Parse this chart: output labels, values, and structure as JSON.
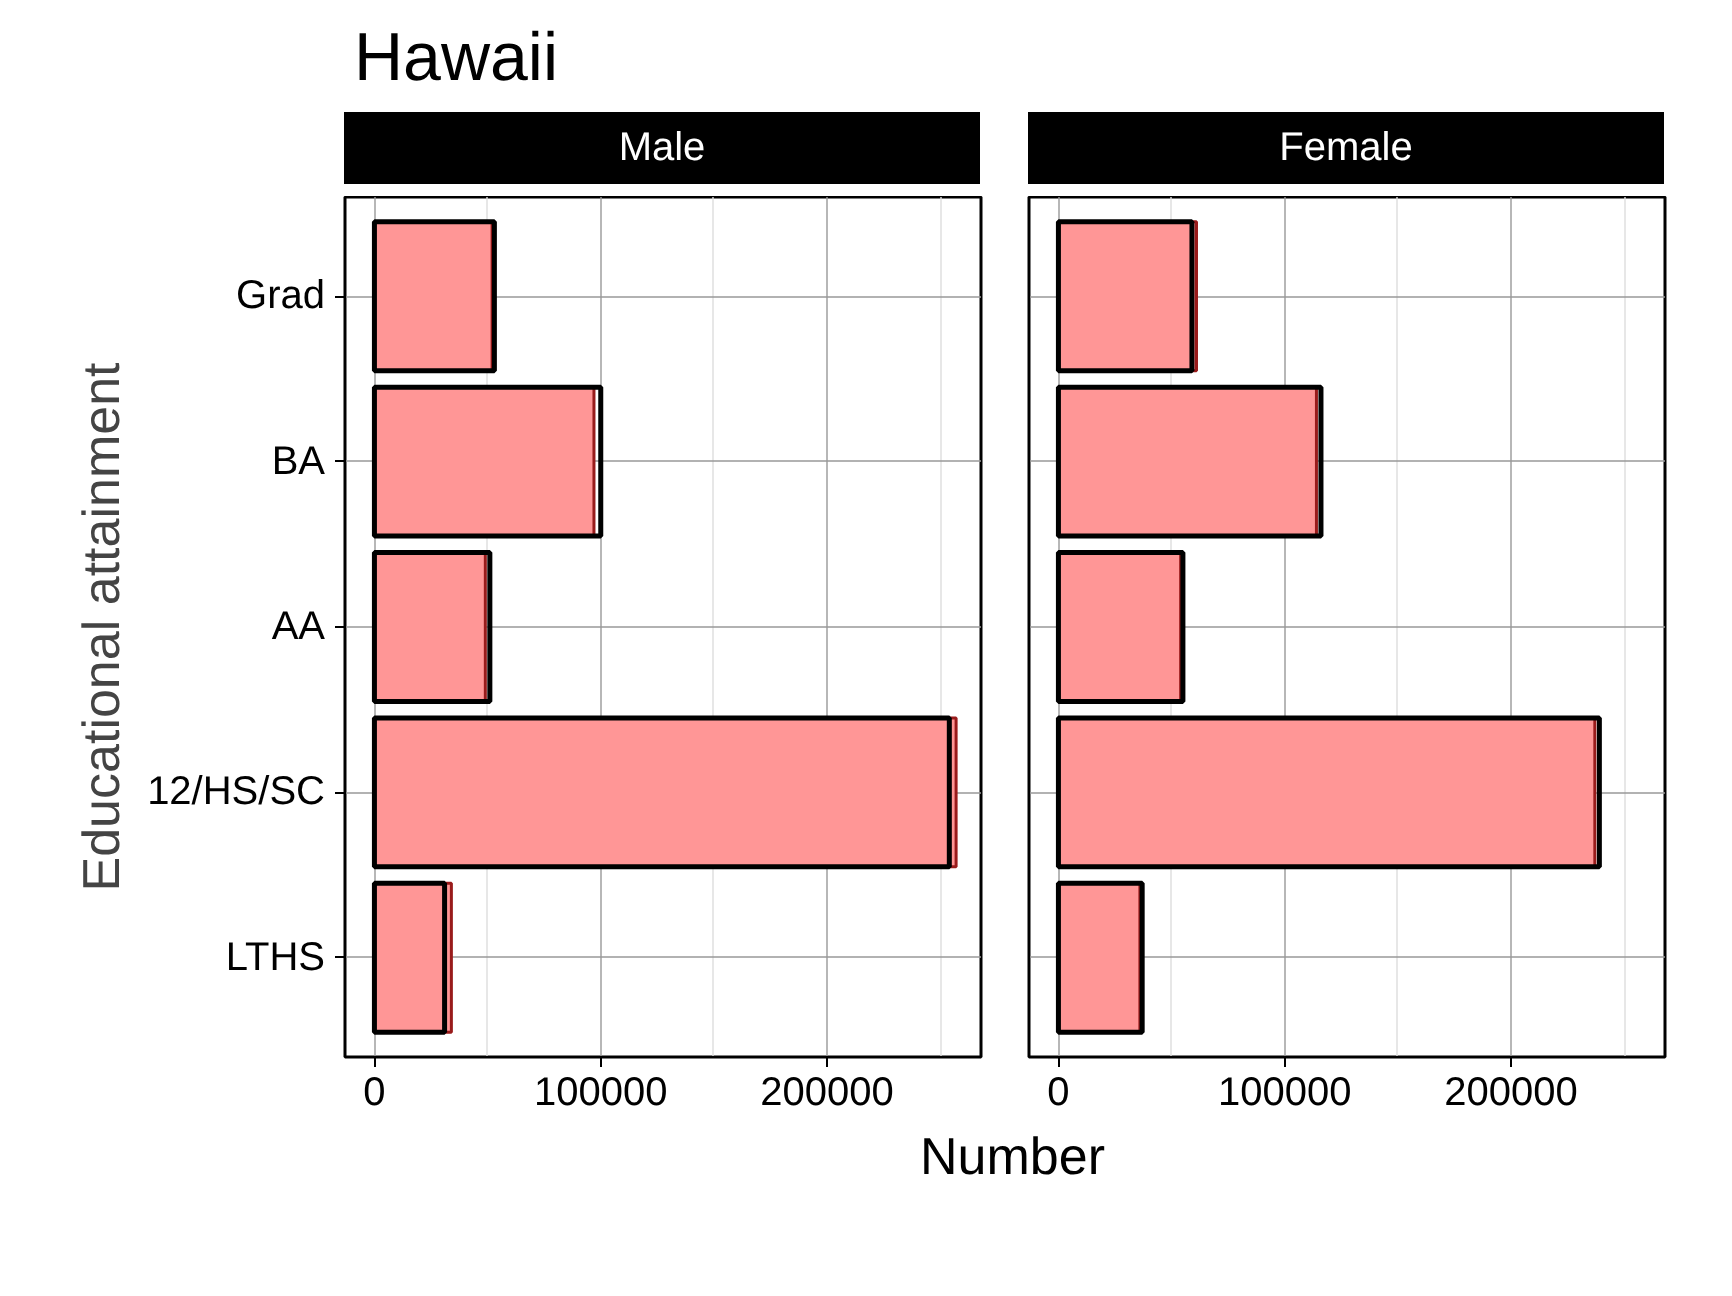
{
  "chart_data": [
    {
      "type": "bar",
      "orientation": "horizontal",
      "title": "Hawaii",
      "subtitle": "Male",
      "ylabel": "Educational attainment",
      "categories": [
        "Grad",
        "BA",
        "AA",
        "12/HS/SC",
        "LTHS"
      ],
      "series": [
        {
          "color": "#000000",
          "values": [
            53000,
            100000,
            51000,
            254000,
            31000
          ]
        },
        {
          "color": "#ff9696",
          "values": [
            52000,
            97000,
            49000,
            257000,
            34000
          ]
        }
      ],
      "xlim": [
        -13000,
        268000
      ],
      "xticks": [
        0,
        100000,
        200000
      ],
      "grid": true
    },
    {
      "type": "bar",
      "orientation": "horizontal",
      "subtitle": "Female",
      "xlabel": "Number",
      "categories": [
        null,
        null,
        null,
        null,
        null
      ],
      "series": [
        {
          "color": "#000000",
          "values": [
            59000,
            116000,
            55000,
            239000,
            37000
          ]
        },
        {
          "color": "#ff9696",
          "values": [
            61000,
            114000,
            54000,
            237000,
            36000
          ]
        }
      ],
      "xlim": [
        -13000,
        268000
      ],
      "xticks": [
        0,
        100000,
        200000
      ],
      "grid": true,
      "tick_labels": "x"
    }
  ]
}
